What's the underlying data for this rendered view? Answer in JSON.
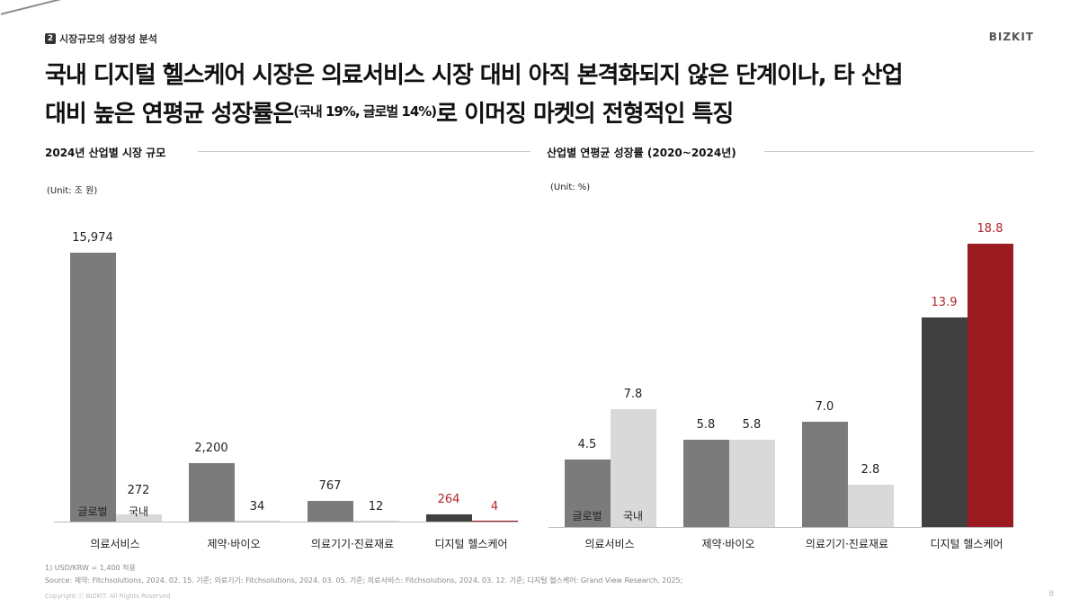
{
  "header": {
    "section_number": "2",
    "section_title": "시장규모의 성장성 분석",
    "brand": "BIZKIT"
  },
  "title": {
    "line1": "국내 디지털 헬스케어 시장은 의료서비스 시장 대비 아직 본격화되지 않은 단계이나, 타 산업",
    "line2_a": "대비 높은 연평균 성장률은",
    "line2_sup": "(국내 19%, 글로벌 14%)",
    "line2_b": "로 이머징 마켓의 전형적인 특징"
  },
  "colors": {
    "global": "#7b7b7b",
    "domestic": "#d9d9d9",
    "digital_global": "#404040",
    "digital_domestic": "#9b1b20",
    "highlight_text": "#b3242a"
  },
  "legend": {
    "global": "글로벌",
    "domestic": "국내"
  },
  "chart_data": [
    {
      "type": "bar",
      "title": "2024년 산업별 시장 규모",
      "unit": "(Unit: 조 원)",
      "categories": [
        "의료서비스",
        "제약·바이오",
        "의료기기·진료재료",
        "디지털 헬스케어"
      ],
      "series": [
        {
          "name": "글로벌",
          "values": [
            15974,
            2200,
            767,
            264
          ],
          "labels": [
            "15,974",
            "2,200",
            "767",
            "264"
          ]
        },
        {
          "name": "국내",
          "values": [
            272,
            34,
            12,
            4
          ],
          "labels": [
            "272",
            "34",
            "12",
            "4"
          ]
        }
      ],
      "axis_break": "의료서비스 글로벌"
    },
    {
      "type": "bar",
      "title": "산업별 연평균 성장률 (2020~2024년)",
      "unit": "(Unit: %)",
      "categories": [
        "의료서비스",
        "제약·바이오",
        "의료기기·진료재료",
        "디지털 헬스케어"
      ],
      "series": [
        {
          "name": "글로벌",
          "values": [
            4.5,
            5.8,
            7.0,
            13.9
          ],
          "labels": [
            "4.5",
            "5.8",
            "7.0",
            "13.9"
          ]
        },
        {
          "name": "국내",
          "values": [
            7.8,
            5.8,
            2.8,
            18.8
          ],
          "labels": [
            "7.8",
            "5.8",
            "2.8",
            "18.8"
          ]
        }
      ]
    }
  ],
  "footer": {
    "note": "1) USD/KRW = 1,400 적용",
    "source": "Source: 제약: Fitchsolutions, 2024. 02. 15. 기준; 의료기기: Fitchsolutions, 2024. 03. 05. 기준; 의료서비스: Fitchsolutions, 2024. 03. 12. 기준; 디지털 헬스케어: Grand View Research, 2025;",
    "copyright": "Copyright ⓒ BIZKIT. All Rights Reserved",
    "page": "8"
  }
}
